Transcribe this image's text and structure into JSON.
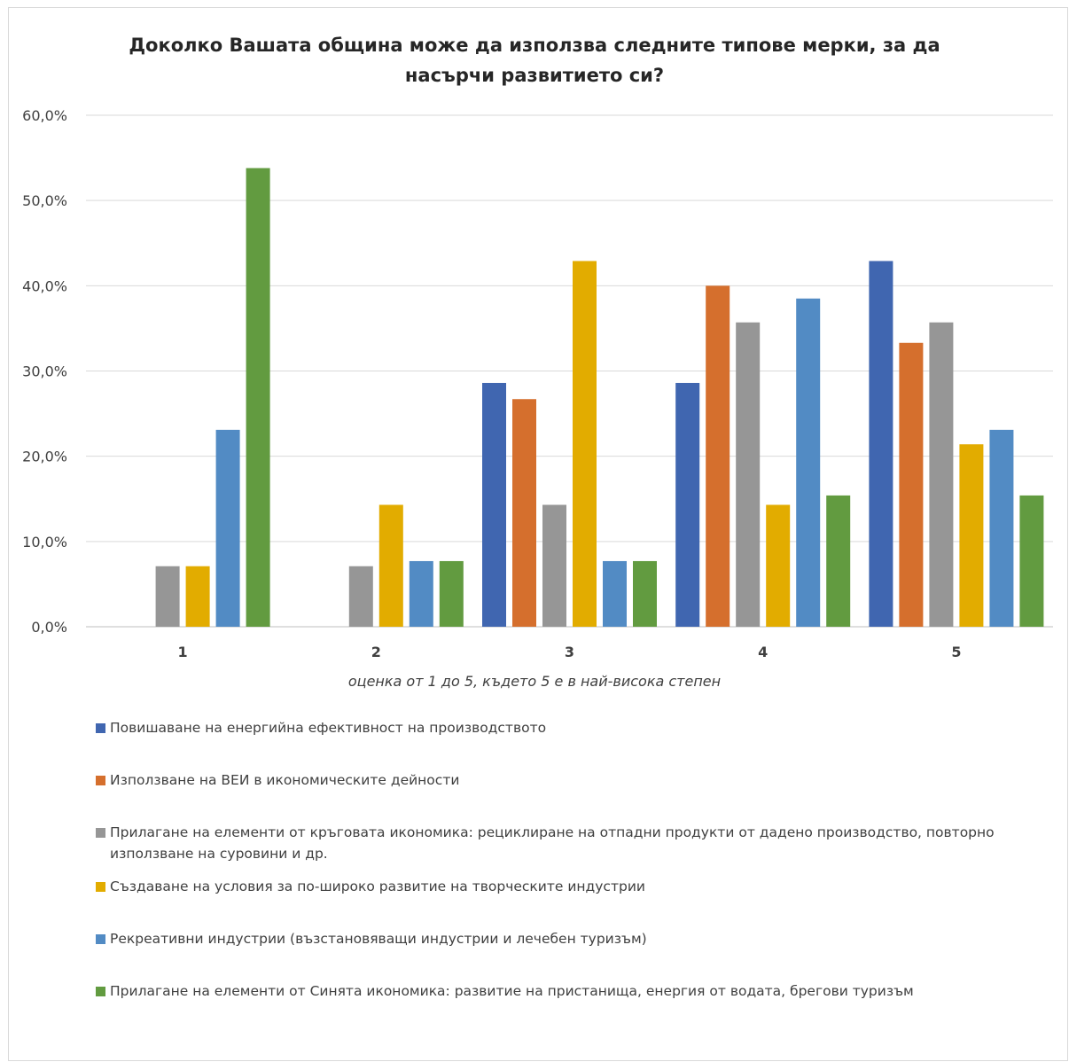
{
  "chart_data": {
    "type": "bar",
    "title_lines": [
      "Доколко Вашата община може да използва следните типове мерки, за да",
      "насърчи развитието си?"
    ],
    "xlabel": "оценка от 1 до 5, където 5 е в най-висока степен",
    "ylabel": "",
    "categories": [
      "1",
      "2",
      "3",
      "4",
      "5"
    ],
    "y_ticks": [
      "0,0%",
      "10,0%",
      "20,0%",
      "30,0%",
      "40,0%",
      "50,0%",
      "60,0%"
    ],
    "ylim": [
      0,
      60
    ],
    "grid": true,
    "legend_position": "bottom",
    "series": [
      {
        "name": "Повишаване на енергийна ефективност на производството",
        "color": "#4066b0",
        "values": [
          0,
          0,
          28.6,
          28.6,
          42.9
        ]
      },
      {
        "name": "Използване на ВЕИ в икономическите дейности",
        "color": "#d56f2d",
        "values": [
          0,
          0,
          26.7,
          40.0,
          33.3
        ]
      },
      {
        "name": "Прилагане на елементи от кръговата икономика: рециклиране на отпадни продукти от дадено производство, повторно използване на суровини и др.",
        "color": "#969696",
        "values": [
          7.1,
          7.1,
          14.3,
          35.7,
          35.7
        ]
      },
      {
        "name": "Създаване на условия за по-широко развитие на творческите индустрии",
        "color": "#e2ac00",
        "values": [
          7.1,
          14.3,
          42.9,
          14.3,
          21.4
        ]
      },
      {
        "name": "Рекреативни индустрии (възстановяващи индустрии и лечебен туризъм)",
        "color": "#528bc4",
        "values": [
          23.1,
          7.7,
          7.7,
          38.5,
          23.1
        ]
      },
      {
        "name": "Прилагане на елементи от Синята икономика: развитие на пристанища, енергия от водата, брегови туризъм",
        "color": "#629b40",
        "values": [
          53.8,
          7.7,
          7.7,
          15.4,
          15.4
        ]
      }
    ]
  }
}
